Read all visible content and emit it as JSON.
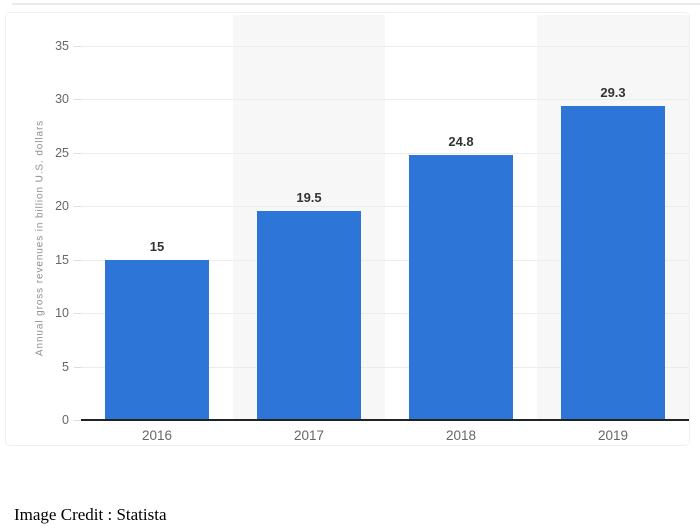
{
  "page": {
    "footer_credit": "Image Credit : Statista"
  },
  "chart_data": {
    "type": "bar",
    "title": "",
    "categories": [
      "2016",
      "2017",
      "2018",
      "2019"
    ],
    "values": [
      15,
      19.5,
      24.8,
      29.3
    ],
    "value_labels": [
      "15",
      "19.5",
      "24.8",
      "29.3"
    ],
    "xlabel": "",
    "ylabel": "Annual gross revenues in billion U.S. dollars",
    "ylim": [
      0,
      35
    ],
    "yticks": [
      0,
      5,
      10,
      15,
      20,
      25,
      30,
      35
    ],
    "grid": "horizontal-only",
    "legend": "none",
    "background_stripes": "alternating vertical bands behind categories 2017 and 2019",
    "colors": {
      "bar": "#2d76d8",
      "stripe": "#f7f7f8",
      "gridline": "#ececec",
      "axis_line": "#222222",
      "tick_label": "#666666",
      "value_label": "#333333",
      "axis_title": "#8f8f8f"
    }
  }
}
